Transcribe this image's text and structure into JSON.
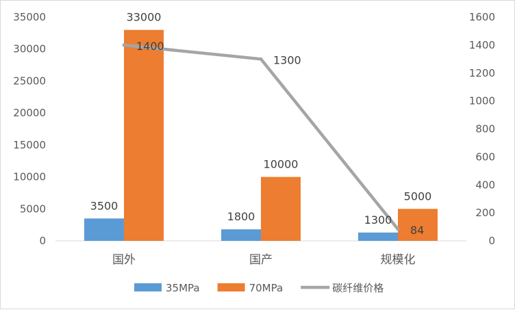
{
  "chart_data": {
    "type": "bar",
    "categories": [
      "国外",
      "国产",
      "规模化"
    ],
    "series": [
      {
        "name": "35MPa",
        "type": "bar",
        "axis": "left",
        "color": "#5b9bd5",
        "values": [
          3500,
          1800,
          1300
        ]
      },
      {
        "name": "70MPa",
        "type": "bar",
        "axis": "left",
        "color": "#ed7d31",
        "values": [
          33000,
          10000,
          5000
        ]
      },
      {
        "name": "碳纤维价格",
        "type": "line",
        "axis": "right",
        "color": "#a5a5a5",
        "values": [
          1400,
          1300,
          84
        ]
      }
    ],
    "ylim_left": [
      0,
      35000
    ],
    "yticks_left": [
      0,
      5000,
      10000,
      15000,
      20000,
      25000,
      30000,
      35000
    ],
    "ylim_right": [
      0,
      1600
    ],
    "yticks_right": [
      0,
      200,
      400,
      600,
      800,
      1000,
      1200,
      1400,
      1600
    ],
    "grid": false,
    "legend_position": "bottom",
    "data_labels": true
  }
}
